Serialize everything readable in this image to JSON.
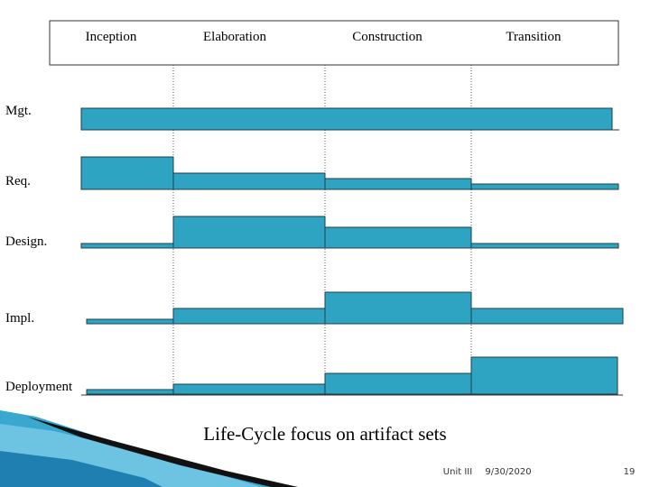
{
  "phases": [
    "Inception",
    "Elaboration",
    "Construction",
    "Transition"
  ],
  "rows": [
    "Mgt.",
    "Req.",
    "Design.",
    "Impl.",
    "Deployment"
  ],
  "caption": "Life-Cycle focus on artifact sets",
  "footer": {
    "unit": "Unit III",
    "date": "9/30/2020",
    "page": "19"
  }
}
